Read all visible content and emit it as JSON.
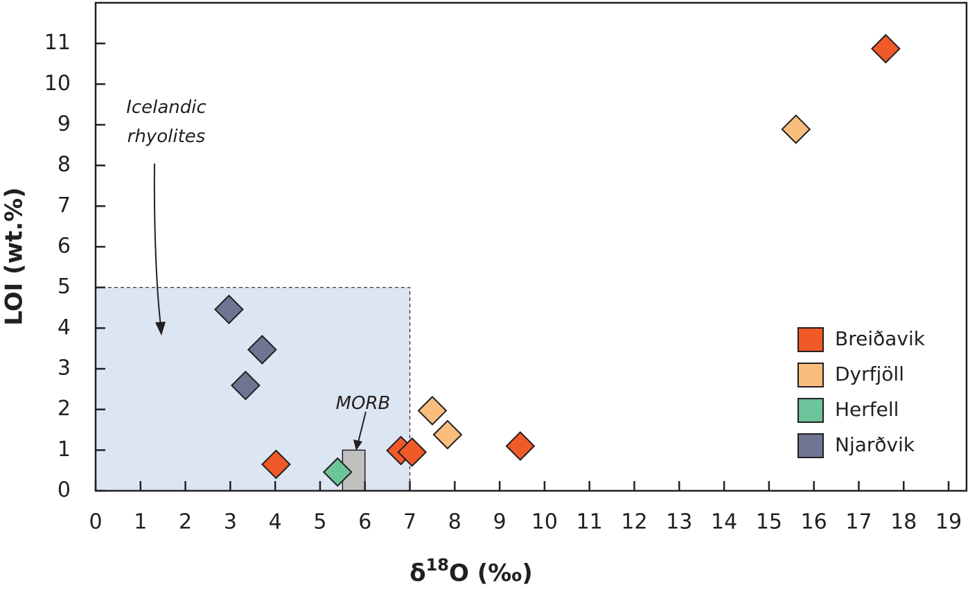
{
  "chart_data": {
    "type": "scatter",
    "xlabel": [
      "δ",
      "18",
      "O (‰)"
    ],
    "ylabel": "LOI (wt.%)",
    "xlim": [
      0,
      19.4
    ],
    "ylim": [
      0,
      12
    ],
    "xticks": [
      0,
      1,
      2,
      3,
      4,
      5,
      6,
      7,
      8,
      9,
      10,
      11,
      12,
      13,
      14,
      15,
      16,
      17,
      18,
      19
    ],
    "yticks": [
      0,
      1,
      2,
      3,
      4,
      5,
      6,
      7,
      8,
      9,
      10,
      11
    ],
    "legend": "lower right",
    "regions": [
      {
        "label_lines": [
          "Icelandic",
          "rhyolites"
        ],
        "xlim": [
          0,
          7
        ],
        "ylim": [
          0,
          5
        ],
        "color": "#dce6f2",
        "dashed": true
      },
      {
        "label_lines": [
          "MORB"
        ],
        "xlim": [
          5.5,
          6
        ],
        "ylim": [
          0,
          1
        ],
        "color": "#c0c0c0",
        "dashed": false
      }
    ],
    "series": [
      {
        "name": "Breiðavik",
        "color": "#ef5a28",
        "x": [
          4.02,
          6.8,
          7.05,
          9.46,
          17.6
        ],
        "values": [
          0.65,
          0.99,
          0.95,
          1.1,
          10.87
        ]
      },
      {
        "name": "Dyrfjöll",
        "color": "#f9bd7e",
        "x": [
          7.5,
          7.84,
          15.6
        ],
        "values": [
          1.97,
          1.38,
          8.89
        ]
      },
      {
        "name": "Herfell",
        "color": "#6cc49a",
        "x": [
          5.39
        ],
        "values": [
          0.46
        ]
      },
      {
        "name": "Njarðvik",
        "color": "#6e7593",
        "x": [
          2.97,
          3.71,
          3.34
        ],
        "values": [
          4.46,
          3.47,
          2.59
        ]
      }
    ]
  }
}
